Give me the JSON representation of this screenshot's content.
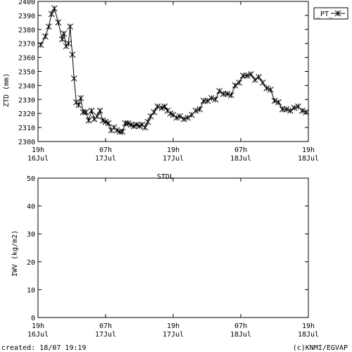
{
  "footer": {
    "created": "created: 18/07 19:19",
    "credit": "(c)KNMI/EGVAP"
  },
  "chart_data": [
    {
      "type": "line",
      "title": "",
      "ylabel": "ZTD (mm)",
      "xlabel": "",
      "ylim": [
        2300,
        2400
      ],
      "yticks": [
        2300,
        2310,
        2320,
        2330,
        2340,
        2350,
        2360,
        2370,
        2380,
        2390,
        2400
      ],
      "xlim": [
        0,
        48
      ],
      "xticks": [
        {
          "x": 0,
          "line1": "19h",
          "line2": "16Jul"
        },
        {
          "x": 12,
          "line1": "07h",
          "line2": "17Jul"
        },
        {
          "x": 24,
          "line1": "19h",
          "line2": "17Jul"
        },
        {
          "x": 36,
          "line1": "07h",
          "line2": "18Jul"
        },
        {
          "x": 48,
          "line1": "19h",
          "line2": "18Jul"
        }
      ],
      "legend_position": "top-right",
      "series": [
        {
          "name": "_PT_",
          "marker": "asterisk",
          "color": "#000000",
          "x": [
            0.5,
            1.3,
            1.9,
            2.4,
            2.9,
            3.6,
            4.3,
            4.6,
            5.0,
            5.4,
            5.7,
            6.1,
            6.4,
            6.8,
            7.2,
            7.6,
            8.0,
            8.5,
            9.0,
            9.5,
            10.0,
            10.5,
            11.0,
            11.5,
            12.0,
            12.5,
            13.0,
            13.5,
            14.0,
            14.5,
            15.0,
            15.5,
            16.0,
            16.5,
            17.0,
            17.5,
            18.0,
            18.5,
            19.0,
            19.5,
            20.0,
            20.6,
            21.2,
            22.0,
            22.5,
            23.0,
            23.5,
            24.0,
            24.6,
            25.2,
            25.9,
            26.6,
            27.3,
            28.0,
            28.7,
            29.4,
            30.1,
            30.8,
            31.5,
            32.2,
            32.9,
            33.6,
            34.3,
            35.0,
            35.7,
            36.4,
            37.1,
            37.8,
            38.5,
            39.2,
            39.9,
            40.6,
            41.3,
            42.0,
            42.7,
            43.4,
            44.1,
            44.8,
            45.5,
            46.2,
            46.9,
            47.6
          ],
          "values": [
            2369,
            2375,
            2382,
            2391,
            2395,
            2385,
            2373,
            2377,
            2368,
            2370,
            2382,
            2362,
            2345,
            2328,
            2326,
            2331,
            2321,
            2321,
            2315,
            2322,
            2316,
            2318,
            2322,
            2315,
            2314,
            2313,
            2308,
            2310,
            2308,
            2307,
            2307,
            2313,
            2313,
            2312,
            2311,
            2312,
            2311,
            2312,
            2310,
            2314,
            2318,
            2321,
            2325,
            2324,
            2325,
            2322,
            2320,
            2319,
            2317,
            2318,
            2316,
            2317,
            2319,
            2322,
            2323,
            2329,
            2329,
            2331,
            2330,
            2336,
            2334,
            2334,
            2333,
            2340,
            2342,
            2347,
            2347,
            2348,
            2344,
            2346,
            2342,
            2338,
            2337,
            2329,
            2328,
            2323,
            2323,
            2322,
            2324,
            2325,
            2322,
            2321
          ]
        }
      ]
    },
    {
      "type": "line",
      "title": "STDL",
      "ylabel": "IWV (kg/m2)",
      "xlabel": "",
      "ylim": [
        0,
        50
      ],
      "yticks": [
        0,
        10,
        20,
        30,
        40,
        50
      ],
      "xlim": [
        0,
        48
      ],
      "xticks": [
        {
          "x": 0,
          "line1": "19h",
          "line2": "16Jul"
        },
        {
          "x": 12,
          "line1": "07h",
          "line2": "17Jul"
        },
        {
          "x": 24,
          "line1": "19h",
          "line2": "17Jul"
        },
        {
          "x": 36,
          "line1": "07h",
          "line2": "18Jul"
        },
        {
          "x": 48,
          "line1": "19h",
          "line2": "18Jul"
        }
      ],
      "series": []
    }
  ]
}
